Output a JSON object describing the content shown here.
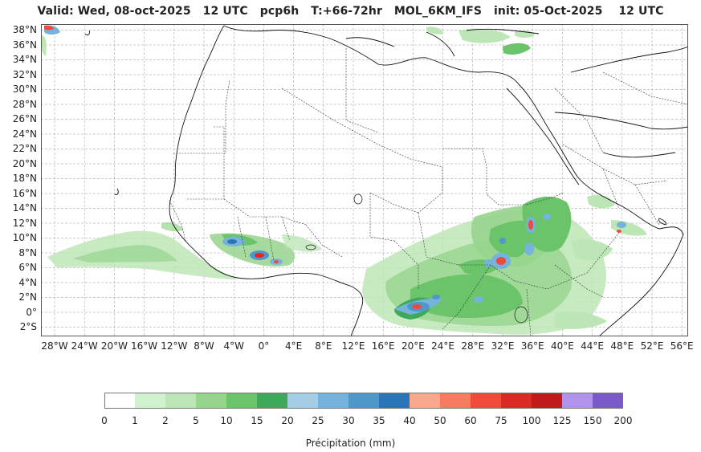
{
  "title": "Valid: Wed, 08-oct-2025   12 UTC   pcp6h   T:+66-72hr   MOL_6KM_IFS   init: 05-Oct-2025    12 UTC",
  "lat_labels": [
    "38°N",
    "36°N",
    "34°N",
    "32°N",
    "30°N",
    "28°N",
    "26°N",
    "24°N",
    "22°N",
    "20°N",
    "18°N",
    "16°N",
    "14°N",
    "12°N",
    "10°N",
    "8°N",
    "6°N",
    "4°N",
    "2°N",
    "0°",
    "2°S"
  ],
  "lon_labels": [
    "28°W",
    "24°W",
    "20°W",
    "16°W",
    "12°W",
    "8°W",
    "4°W",
    "0°",
    "4°E",
    "8°E",
    "12°E",
    "16°E",
    "20°E",
    "24°E",
    "28°E",
    "32°E",
    "36°E",
    "40°E",
    "44°E",
    "48°E",
    "52°E",
    "56°E"
  ],
  "colorbar": {
    "label": "Précipitation (mm)",
    "ticks": [
      "0",
      "1",
      "2",
      "5",
      "10",
      "15",
      "20",
      "25",
      "30",
      "35",
      "40",
      "50",
      "60",
      "75",
      "100",
      "125",
      "150",
      "200"
    ],
    "colors": [
      "#ffffff",
      "#d2f2cf",
      "#bde6b6",
      "#97d48e",
      "#6bc36a",
      "#3ea95a",
      "#a6cde6",
      "#76b3dc",
      "#4f97c8",
      "#2a74b7",
      "#f9a88d",
      "#f77b5e",
      "#ef4a3a",
      "#d92b24",
      "#c01a1a",
      "#b193ec",
      "#7a5ac8",
      "#4b0a7a"
    ]
  }
}
